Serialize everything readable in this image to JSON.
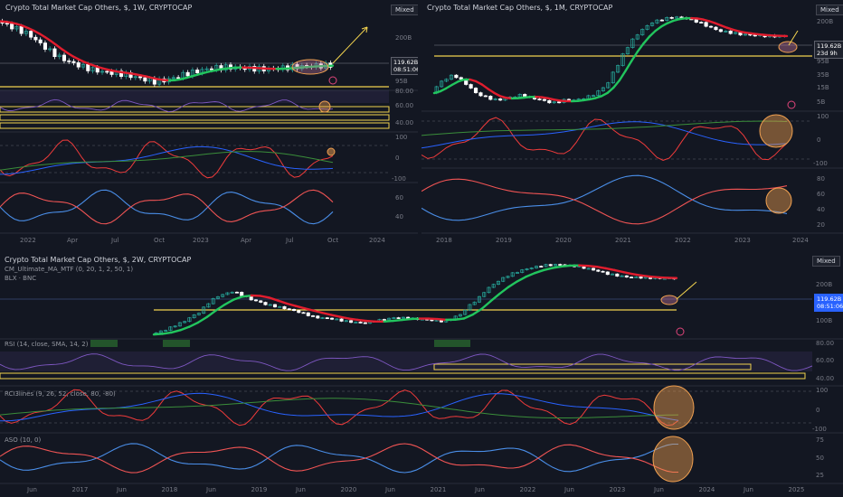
{
  "colors": {
    "bg": "#131722",
    "grid": "#1e222d",
    "bull": "#26a69a",
    "bear": "#ffffff",
    "ma_up": "#22c55e",
    "ma_down": "#e11d2e",
    "support": "#f2d34f",
    "rsi": "#7e57c2",
    "osc_red": "#ef3b3b",
    "osc_blue": "#2962ff",
    "osc_green": "#3a8d3a",
    "aso_red": "#f05454",
    "aso_blue": "#4a8ee8",
    "highlight": "#f0a050"
  },
  "panels": [
    {
      "id": "top-left",
      "title": "Crypto Total Market Cap Others, $, 1W, CRYPTOCAP",
      "mode_label": "Mixed",
      "price_tag": "119.62B",
      "price_tag_time": "08:51:06",
      "y_labels_price": [
        "200B",
        "95B"
      ],
      "y_labels_rsi": [
        "80.00",
        "60.00",
        "40.00"
      ],
      "y_labels_osc": [
        "100",
        "0",
        "-100"
      ],
      "y_labels_aso": [
        "60",
        "40"
      ],
      "x_labels": [
        "2022",
        "Apr",
        "Jul",
        "Oct",
        "2023",
        "Apr",
        "Jul",
        "Oct",
        "2024"
      ]
    },
    {
      "id": "top-right",
      "title": "Crypto Total Market Cap Others, $, 1M, CRYPTOCAP",
      "mode_label": "Mixed",
      "price_tag": "119.62B",
      "price_tag_time": "23d 9h",
      "y_labels_price": [
        "200B",
        "95B",
        "35B",
        "15B",
        "5B"
      ],
      "y_labels_osc": [
        "100",
        "0",
        "-100"
      ],
      "y_labels_aso": [
        "80",
        "60",
        "40",
        "20"
      ],
      "x_labels": [
        "2018",
        "2019",
        "2020",
        "2021",
        "2022",
        "2023",
        "2024"
      ]
    },
    {
      "id": "bottom",
      "title": "Crypto Total Market Cap Others, $, 2W, CRYPTOCAP",
      "indicator_1": "CM_Ultimate_MA_MTF (0, 20, 1, 2, 50, 1)",
      "indicator_2": "BLX · BNC",
      "rsi_label": "RSI (14, close, SMA, 14, 2)",
      "osc_label": "RCI3lines (9, 26, 52, close, 80, -80)",
      "aso_label": "ASO (10, 0)",
      "mode_label": "Mixed",
      "price_tag": "119.62B",
      "price_tag_time": "08:51:06",
      "y_labels_price": [
        "200B",
        "100B"
      ],
      "y_labels_rsi": [
        "80.00",
        "60.00",
        "40.00"
      ],
      "y_labels_osc": [
        "100",
        "0",
        "-100"
      ],
      "y_labels_aso": [
        "75",
        "50",
        "25"
      ],
      "x_labels": [
        "Jun",
        "2017",
        "Jun",
        "2018",
        "Jun",
        "2019",
        "Jun",
        "2020",
        "Jun",
        "2021",
        "Jun",
        "2022",
        "Jun",
        "2023",
        "Jun",
        "2024",
        "Jun",
        "2025"
      ]
    }
  ],
  "chart_data": [
    {
      "type": "line",
      "title": "Crypto Total Market Cap Others, $, 1W, CRYPTOCAP",
      "series": [
        {
          "name": "",
          "values": [
            240,
            225,
            210,
            195,
            170,
            150,
            135,
            125,
            118,
            112,
            108,
            106,
            104,
            100,
            96,
            92,
            94,
            98,
            104,
            108,
            112,
            115,
            116,
            115,
            114,
            113,
            112,
            114,
            116,
            117,
            118,
            119,
            119.62
          ]
        }
      ]
    },
    {
      "type": "line",
      "title": "Crypto Total Market Cap Others, $, 1M, CRYPTOCAP",
      "series": [
        {
          "name": "",
          "values": [
            12,
            20,
            25,
            18,
            12,
            10,
            9,
            10,
            11,
            10,
            9,
            8,
            9,
            9,
            10,
            12,
            18,
            40,
            90,
            150,
            210,
            240,
            260,
            250,
            220,
            180,
            150,
            140,
            130,
            125,
            122,
            120,
            119.62
          ]
        }
      ]
    },
    {
      "type": "line",
      "title": "Crypto Total Market Cap Others, $, 2W, CRYPTOCAP",
      "series": [
        {
          "name": "",
          "values": [
            6,
            8,
            12,
            20,
            45,
            60,
            40,
            30,
            25,
            20,
            15,
            14,
            12,
            11,
            13,
            15,
            14,
            13,
            12,
            18,
            40,
            90,
            150,
            200,
            240,
            250,
            230,
            190,
            150,
            130,
            125,
            120,
            119.62
          ]
        }
      ]
    }
  ]
}
